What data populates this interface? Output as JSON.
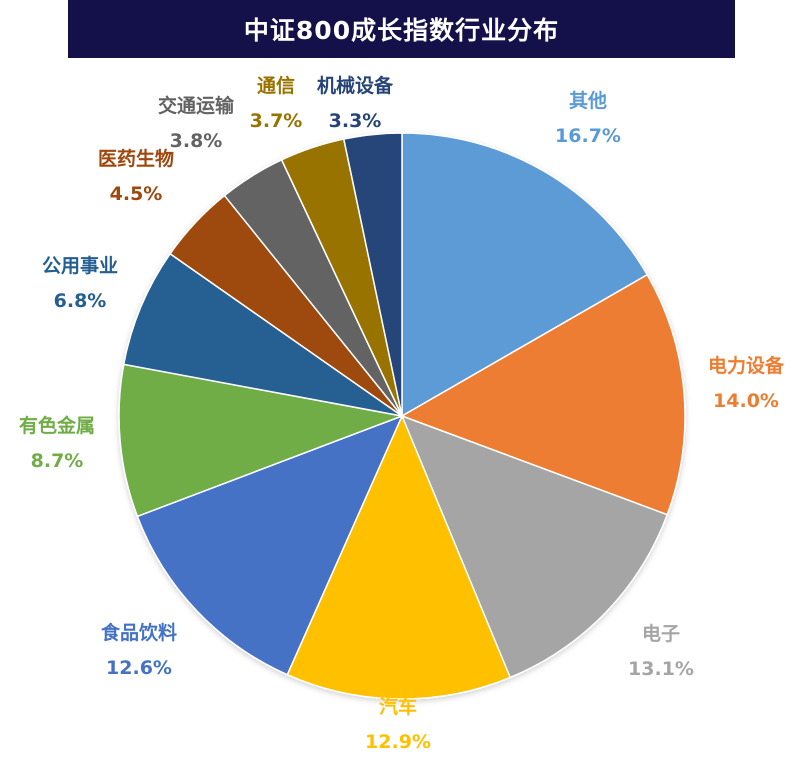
{
  "chart_data": {
    "type": "pie",
    "title": "中证800成长指数行业分布",
    "unit": "%",
    "start_angle_deg": 0,
    "direction": "clockwise",
    "slices": [
      {
        "name": "其他",
        "value": 16.7,
        "pct_label": "16.7%",
        "color": "#5b9bd5"
      },
      {
        "name": "电力设备",
        "value": 14.0,
        "pct_label": "14.0%",
        "color": "#ed7d31"
      },
      {
        "name": "电子",
        "value": 13.1,
        "pct_label": "13.1%",
        "color": "#a5a5a5"
      },
      {
        "name": "汽车",
        "value": 12.9,
        "pct_label": "12.9%",
        "color": "#ffc000"
      },
      {
        "name": "食品饮料",
        "value": 12.6,
        "pct_label": "12.6%",
        "color": "#4472c4"
      },
      {
        "name": "有色金属",
        "value": 8.7,
        "pct_label": "8.7%",
        "color": "#70ad47"
      },
      {
        "name": "公用事业",
        "value": 6.8,
        "pct_label": "6.8%",
        "color": "#255e91"
      },
      {
        "name": "医药生物",
        "value": 4.5,
        "pct_label": "4.5%",
        "color": "#9e480e"
      },
      {
        "name": "交通运输",
        "value": 3.8,
        "pct_label": "3.8%",
        "color": "#636363"
      },
      {
        "name": "通信",
        "value": 3.7,
        "pct_label": "3.7%",
        "color": "#997300"
      },
      {
        "name": "机械设备",
        "value": 3.3,
        "pct_label": "3.3%",
        "color": "#264478"
      }
    ]
  }
}
